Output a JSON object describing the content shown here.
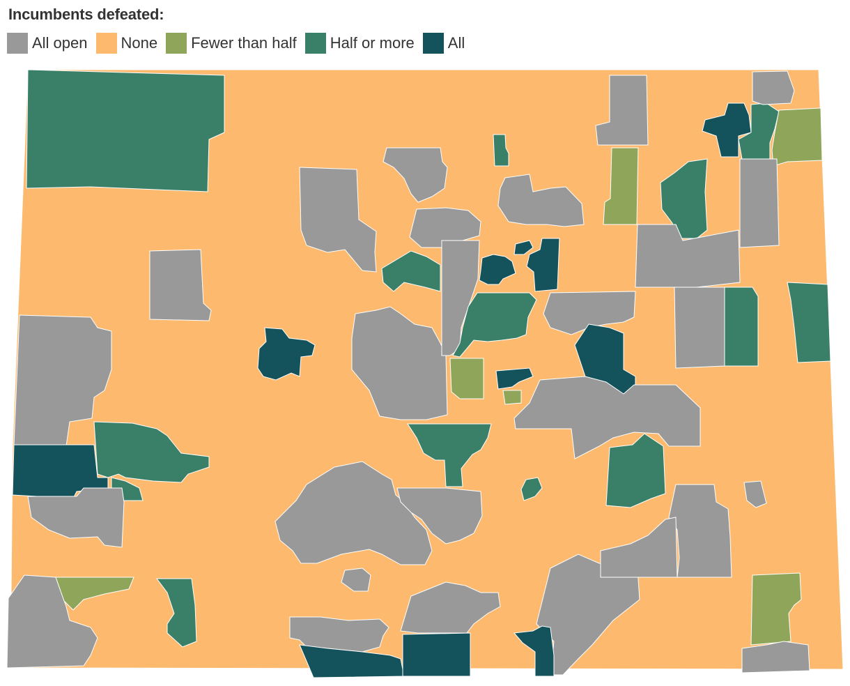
{
  "legend": {
    "title": "Incumbents defeated:",
    "categories": [
      {
        "key": "open",
        "label": "All open",
        "color": "#999999"
      },
      {
        "key": "none",
        "label": "None",
        "color": "#FDB96E"
      },
      {
        "key": "few",
        "label": "Fewer than half",
        "color": "#8FA65A"
      },
      {
        "key": "half",
        "label": "Half or more",
        "color": "#3A8068"
      },
      {
        "key": "all",
        "label": "All",
        "color": "#14525C"
      }
    ]
  }
}
